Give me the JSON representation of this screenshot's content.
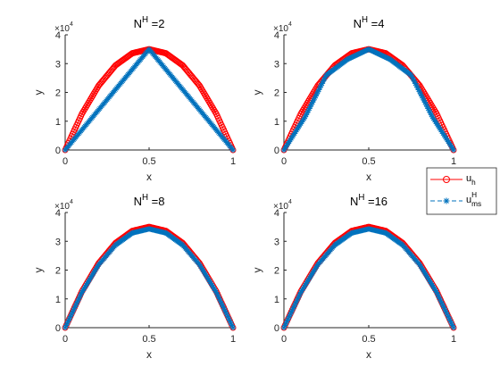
{
  "chart_data": [
    {
      "type": "line",
      "title": "N^H =2",
      "title_base": "N",
      "title_sup": "H",
      "title_rest": " =2",
      "xlabel": "x",
      "ylabel": "y",
      "xlim": [
        0,
        1
      ],
      "ylim": [
        0,
        40000
      ],
      "xticks": [
        "0",
        "0.5",
        "1"
      ],
      "yticks": [
        "0",
        "1",
        "2",
        "3",
        "4"
      ],
      "y_exponent": "×10^4",
      "y_exponent_base": "×10",
      "y_exponent_sup": "4",
      "series": [
        {
          "name": "u_h",
          "color": "#ff0000",
          "marker": "o",
          "x": [
            0,
            0.1,
            0.2,
            0.3,
            0.4,
            0.5,
            0.6,
            0.7,
            0.8,
            0.9,
            1
          ],
          "y": [
            0,
            12600,
            22400,
            29400,
            33600,
            35000,
            33600,
            29400,
            22400,
            12600,
            0
          ]
        },
        {
          "name": "u_ms^H",
          "color": "#0072bd",
          "marker": "*",
          "x": [
            0,
            0.1,
            0.2,
            0.3,
            0.4,
            0.5,
            0.6,
            0.7,
            0.8,
            0.9,
            1
          ],
          "y": [
            0,
            7000,
            14000,
            21000,
            28000,
            35000,
            28000,
            21000,
            14000,
            7000,
            0
          ]
        }
      ]
    },
    {
      "type": "line",
      "title": "N^H =4",
      "title_base": "N",
      "title_sup": "H",
      "title_rest": " =4",
      "xlabel": "x",
      "ylabel": "y",
      "xlim": [
        0,
        1
      ],
      "ylim": [
        0,
        40000
      ],
      "xticks": [
        "0",
        "0.5",
        "1"
      ],
      "yticks": [
        "0",
        "1",
        "2",
        "3",
        "4"
      ],
      "y_exponent": "×10^4",
      "y_exponent_base": "×10",
      "y_exponent_sup": "4",
      "series": [
        {
          "name": "u_h",
          "color": "#ff0000",
          "marker": "o",
          "x": [
            0,
            0.1,
            0.2,
            0.3,
            0.4,
            0.5,
            0.6,
            0.7,
            0.8,
            0.9,
            1
          ],
          "y": [
            0,
            12600,
            22400,
            29400,
            33600,
            35000,
            33600,
            29400,
            22400,
            12600,
            0
          ]
        },
        {
          "name": "u_ms^H",
          "color": "#0072bd",
          "marker": "*",
          "x": [
            0,
            0.125,
            0.25,
            0.375,
            0.5,
            0.625,
            0.75,
            0.875,
            1
          ],
          "y": [
            0,
            11500,
            26000,
            31500,
            35000,
            31500,
            26000,
            11500,
            0
          ]
        }
      ]
    },
    {
      "type": "line",
      "title": "N^H =8",
      "title_base": "N",
      "title_sup": "H",
      "title_rest": " =8",
      "xlabel": "x",
      "ylabel": "y",
      "xlim": [
        0,
        1
      ],
      "ylim": [
        0,
        40000
      ],
      "xticks": [
        "0",
        "0.5",
        "1"
      ],
      "yticks": [
        "0",
        "1",
        "2",
        "3",
        "4"
      ],
      "y_exponent": "×10^4",
      "y_exponent_base": "×10",
      "y_exponent_sup": "4",
      "series": [
        {
          "name": "u_h",
          "color": "#ff0000",
          "marker": "o",
          "x": [
            0,
            0.1,
            0.2,
            0.3,
            0.4,
            0.5,
            0.6,
            0.7,
            0.8,
            0.9,
            1
          ],
          "y": [
            0,
            12600,
            22400,
            29400,
            33600,
            35000,
            33600,
            29400,
            22400,
            12600,
            0
          ]
        },
        {
          "name": "u_ms^H",
          "color": "#0072bd",
          "marker": "*",
          "x": [
            0,
            0.1,
            0.2,
            0.3,
            0.4,
            0.5,
            0.6,
            0.7,
            0.8,
            0.9,
            1
          ],
          "y": [
            0,
            12300,
            21900,
            28700,
            32900,
            34300,
            32900,
            28700,
            21900,
            12300,
            0
          ]
        }
      ]
    },
    {
      "type": "line",
      "title": "N^H =16",
      "title_base": "N",
      "title_sup": "H",
      "title_rest": " =16",
      "xlabel": "x",
      "ylabel": "y",
      "xlim": [
        0,
        1
      ],
      "ylim": [
        0,
        40000
      ],
      "xticks": [
        "0",
        "0.5",
        "1"
      ],
      "yticks": [
        "0",
        "1",
        "2",
        "3",
        "4"
      ],
      "y_exponent": "×10^4",
      "y_exponent_base": "×10",
      "y_exponent_sup": "4",
      "series": [
        {
          "name": "u_h",
          "color": "#ff0000",
          "marker": "o",
          "x": [
            0,
            0.1,
            0.2,
            0.3,
            0.4,
            0.5,
            0.6,
            0.7,
            0.8,
            0.9,
            1
          ],
          "y": [
            0,
            12600,
            22400,
            29400,
            33600,
            35000,
            33600,
            29400,
            22400,
            12600,
            0
          ]
        },
        {
          "name": "u_ms^H",
          "color": "#0072bd",
          "marker": "*",
          "x": [
            0,
            0.1,
            0.2,
            0.3,
            0.4,
            0.5,
            0.6,
            0.7,
            0.8,
            0.9,
            1
          ],
          "y": [
            0,
            12300,
            21900,
            28700,
            32900,
            34300,
            32900,
            28700,
            21900,
            12300,
            0
          ]
        }
      ]
    }
  ],
  "legend": {
    "placement": "right-center",
    "entries": [
      {
        "label": "u_h",
        "base": "u",
        "sub": "h",
        "sup": "",
        "color": "#ff0000",
        "marker": "o",
        "line_style": "solid"
      },
      {
        "label": "u_ms^H",
        "base": "u",
        "sub": "ms",
        "sup": "H",
        "color": "#0072bd",
        "marker": "*",
        "line_style": "dashed"
      }
    ]
  }
}
